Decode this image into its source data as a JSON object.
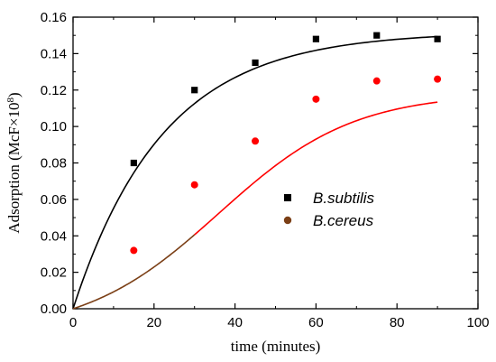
{
  "chart_data": {
    "type": "scatter",
    "xlabel": "time (minutes)",
    "ylabel": {
      "text": "Adsorption (McF×10",
      "superscript": "8",
      "suffix": ")"
    },
    "xlim": [
      0,
      100
    ],
    "ylim": [
      0,
      0.16
    ],
    "xticks": [
      "0",
      "20",
      "40",
      "60",
      "80",
      "100"
    ],
    "yticks": [
      "0.00",
      "0.02",
      "0.04",
      "0.06",
      "0.08",
      "0.10",
      "0.12",
      "0.14",
      "0.16"
    ],
    "grid": false,
    "legend_position": "center-right",
    "series": [
      {
        "name": "B.subtilis",
        "marker": "square",
        "marker_color": "#000000",
        "legend_marker_color": "#000000",
        "fit_color": "#000000",
        "fit_model": "exponential-saturation",
        "fit_params": {
          "a": 0.152,
          "k": 0.045
        },
        "x": [
          0,
          15,
          30,
          45,
          60,
          75,
          90
        ],
        "y": [
          0.0,
          0.08,
          0.12,
          0.135,
          0.148,
          0.15,
          0.148
        ]
      },
      {
        "name": "B.cereus",
        "marker": "circle",
        "marker_color": "#ff0000",
        "legend_marker_color": "#7b3f16",
        "fit_color": "#ff0000",
        "fit_start_color": "#7b3f16",
        "fit_model": "logistic",
        "fit_params": {
          "a": 0.132,
          "k": 0.06,
          "x0": 36,
          "cutoff": 30
        },
        "x": [
          0,
          15,
          30,
          45,
          60,
          75,
          90
        ],
        "y": [
          0.0,
          0.032,
          0.068,
          0.092,
          0.115,
          0.125,
          0.126
        ]
      }
    ]
  }
}
